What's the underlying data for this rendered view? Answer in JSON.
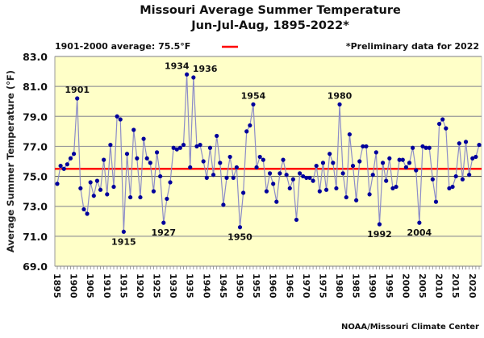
{
  "chart_data": {
    "type": "line",
    "title": "Missouri Average Summer Temperature",
    "subtitle": "Jun-Jul-Aug, 1895-2022*",
    "ylabel": "Average Summer Temperature (°F)",
    "xlabel": "",
    "ylim": [
      69.0,
      83.0
    ],
    "xlim": [
      1895,
      2022
    ],
    "yticks": [
      "69.0",
      "71.0",
      "73.0",
      "75.0",
      "77.0",
      "79.0",
      "81.0",
      "83.0"
    ],
    "xticks": [
      "1895",
      "1900",
      "1905",
      "1910",
      "1915",
      "1920",
      "1925",
      "1930",
      "1935",
      "1940",
      "1945",
      "1950",
      "1955",
      "1960",
      "1965",
      "1970",
      "1975",
      "1980",
      "1985",
      "1990",
      "1995",
      "2000",
      "2005",
      "2010",
      "2015",
      "2020"
    ],
    "grid": true,
    "legend": {
      "text": "1901-2000 average: 75.5°F",
      "placement": "top-left"
    },
    "note": "*Preliminary data for 2022",
    "source": "NOAA/Missouri Climate Center",
    "average": 75.5,
    "colors": {
      "series": "#00009c",
      "line": "#8c8cc8",
      "average": "#ff0000",
      "plot_bg": "#ffffc8"
    },
    "annotations": [
      {
        "year": 1901,
        "label": "1901",
        "pos": "above"
      },
      {
        "year": 1915,
        "label": "1915",
        "pos": "below"
      },
      {
        "year": 1927,
        "label": "1927",
        "pos": "below"
      },
      {
        "year": 1934,
        "label": "1934",
        "pos": "above"
      },
      {
        "year": 1936,
        "label": "1936",
        "pos": "above"
      },
      {
        "year": 1950,
        "label": "1950",
        "pos": "below"
      },
      {
        "year": 1954,
        "label": "1954",
        "pos": "above"
      },
      {
        "year": 1980,
        "label": "1980",
        "pos": "above"
      },
      {
        "year": 1992,
        "label": "1992",
        "pos": "below"
      },
      {
        "year": 2004,
        "label": "2004",
        "pos": "below"
      }
    ],
    "start_year": 1895,
    "values": [
      74.5,
      75.7,
      75.5,
      75.8,
      76.2,
      76.5,
      80.2,
      74.2,
      72.8,
      72.5,
      74.6,
      73.7,
      74.7,
      74.1,
      76.1,
      73.8,
      77.1,
      74.3,
      79.0,
      78.8,
      71.3,
      76.5,
      73.6,
      78.1,
      76.2,
      73.6,
      77.5,
      76.2,
      75.9,
      74.0,
      76.6,
      75.0,
      71.9,
      73.5,
      74.6,
      76.9,
      76.8,
      76.9,
      77.1,
      81.8,
      75.6,
      81.6,
      77.0,
      77.1,
      76.0,
      74.9,
      76.9,
      75.1,
      77.7,
      75.9,
      73.1,
      74.9,
      76.3,
      74.9,
      75.6,
      71.6,
      73.9,
      78.0,
      78.4,
      79.8,
      75.6,
      76.3,
      76.1,
      74.0,
      75.2,
      74.5,
      73.3,
      75.2,
      76.1,
      75.1,
      74.2,
      74.8,
      72.1,
      75.2,
      75.0,
      74.9,
      74.9,
      74.7,
      75.7,
      74.0,
      75.9,
      74.1,
      76.5,
      75.9,
      74.2,
      79.8,
      75.2,
      73.6,
      77.8,
      75.7,
      73.4,
      76.0,
      77.0,
      77.0,
      73.8,
      75.1,
      76.6,
      71.8,
      75.9,
      74.7,
      76.2,
      74.2,
      74.3,
      76.1,
      76.1,
      75.6,
      75.9,
      76.9,
      75.4,
      71.9,
      77.0,
      76.9,
      76.9,
      74.8,
      73.3,
      78.5,
      78.8,
      78.2,
      74.2,
      74.3,
      75.0,
      77.2,
      74.8,
      77.3,
      75.1,
      76.2,
      76.3,
      77.1
    ]
  }
}
